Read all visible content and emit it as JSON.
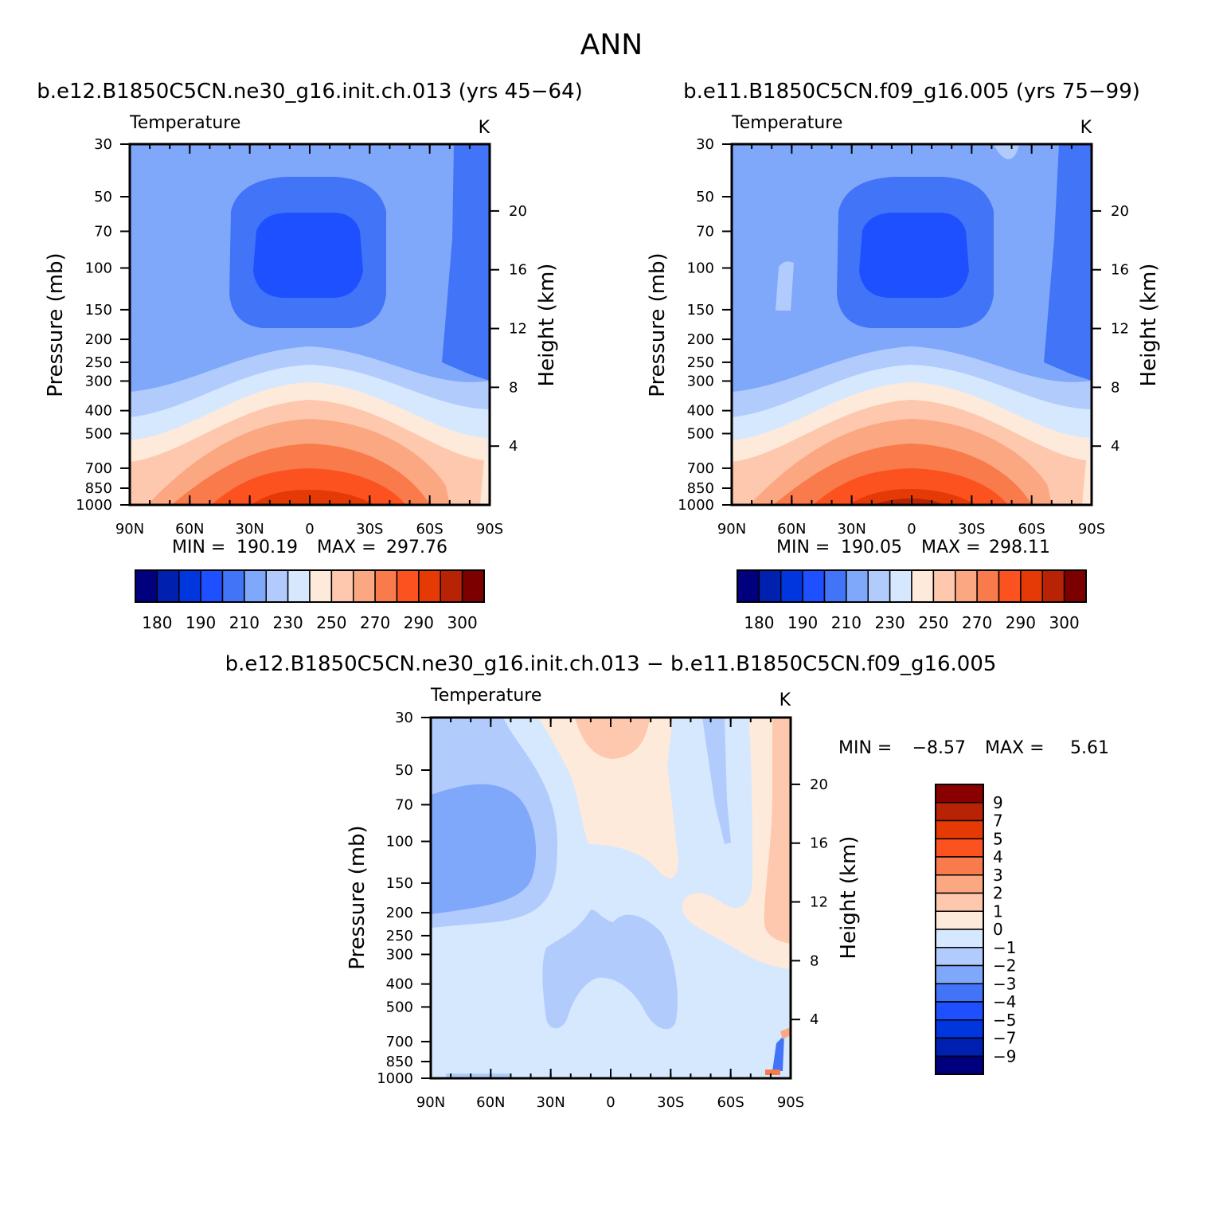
{
  "figure": {
    "title": "ANN"
  },
  "palette": {
    "temp_fill": [
      "#00007f",
      "#0020b0",
      "#0036de",
      "#1e50ff",
      "#4274f7",
      "#80a8fa",
      "#b2cbfd",
      "#d6e8fe",
      "#feeadb",
      "#fdc8ad",
      "#fba882",
      "#f97a4a",
      "#fb5220",
      "#e53a06",
      "#b82305",
      "#7d0000"
    ],
    "diff_fill": [
      "#00007f",
      "#0020b0",
      "#0036de",
      "#1e50ff",
      "#4274f7",
      "#80a8fa",
      "#b2cbfd",
      "#d6e8fe",
      "#feeadb",
      "#fdc8ad",
      "#fba882",
      "#f97a4a",
      "#fb5220",
      "#e53a06",
      "#b82305",
      "#8a0000"
    ]
  },
  "chart_data": [
    {
      "type": "heatmap",
      "id": "panel1",
      "title": "b.e12.B1850C5CN.ne30_g16.init.ch.013 (yrs 45−64)",
      "subtitle_left": "Temperature",
      "subtitle_right": "K",
      "ylabel": "Pressure (mb)",
      "y2label": "Height (km)",
      "xticks": [
        "90N",
        "60N",
        "30N",
        "0",
        "30S",
        "60S",
        "90S"
      ],
      "yticks": [
        "30",
        "50",
        "70",
        "100",
        "150",
        "200",
        "250",
        "300",
        "400",
        "500",
        "700",
        "850",
        "1000"
      ],
      "y2ticks": [
        "20",
        "16",
        "12",
        "8",
        "4"
      ],
      "min_label": "MIN =",
      "min_value": "190.19",
      "max_label": "MAX =",
      "max_value": "297.76",
      "colorbar_labels": [
        "180",
        "190",
        "210",
        "230",
        "250",
        "270",
        "290",
        "300"
      ],
      "contour_levels": [
        180,
        185,
        190,
        200,
        210,
        220,
        230,
        240,
        250,
        260,
        270,
        280,
        290,
        295,
        300
      ],
      "ylim": [
        1000,
        30
      ],
      "xlim": [
        "90N",
        "90S"
      ]
    },
    {
      "type": "heatmap",
      "id": "panel2",
      "title": "b.e11.B1850C5CN.f09_g16.005 (yrs 75−99)",
      "subtitle_left": "Temperature",
      "subtitle_right": "K",
      "ylabel": "Pressure (mb)",
      "y2label": "Height (km)",
      "xticks": [
        "90N",
        "60N",
        "30N",
        "0",
        "30S",
        "60S",
        "90S"
      ],
      "yticks": [
        "30",
        "50",
        "70",
        "100",
        "150",
        "200",
        "250",
        "300",
        "400",
        "500",
        "700",
        "850",
        "1000"
      ],
      "y2ticks": [
        "20",
        "16",
        "12",
        "8",
        "4"
      ],
      "min_label": "MIN =",
      "min_value": "190.05",
      "max_label": "MAX =",
      "max_value": "298.11",
      "colorbar_labels": [
        "180",
        "190",
        "210",
        "230",
        "250",
        "270",
        "290",
        "300"
      ],
      "contour_levels": [
        180,
        185,
        190,
        200,
        210,
        220,
        230,
        240,
        250,
        260,
        270,
        280,
        290,
        295,
        300
      ],
      "ylim": [
        1000,
        30
      ],
      "xlim": [
        "90N",
        "90S"
      ]
    },
    {
      "type": "heatmap",
      "id": "panel3",
      "title": "b.e12.B1850C5CN.ne30_g16.init.ch.013 − b.e11.B1850C5CN.f09_g16.005",
      "subtitle_left": "Temperature",
      "subtitle_right": "K",
      "ylabel": "Pressure (mb)",
      "y2label": "Height (km)",
      "xticks": [
        "90N",
        "60N",
        "30N",
        "0",
        "30S",
        "60S",
        "90S"
      ],
      "yticks": [
        "30",
        "50",
        "70",
        "100",
        "150",
        "200",
        "250",
        "300",
        "400",
        "500",
        "700",
        "850",
        "1000"
      ],
      "y2ticks": [
        "20",
        "16",
        "12",
        "8",
        "4"
      ],
      "min_label": "MIN =",
      "min_value": "−8.57",
      "max_label": "MAX =",
      "max_value": "5.61",
      "colorbar_labels": [
        "9",
        "7",
        "5",
        "4",
        "3",
        "2",
        "1",
        "0",
        "−1",
        "−2",
        "−3",
        "−4",
        "−5",
        "−7",
        "−9"
      ],
      "contour_levels": [
        -9,
        -7,
        -5,
        -4,
        -3,
        -2,
        -1,
        0,
        1,
        2,
        3,
        4,
        5,
        7,
        9
      ],
      "ylim": [
        1000,
        30
      ],
      "xlim": [
        "90N",
        "90S"
      ]
    }
  ]
}
